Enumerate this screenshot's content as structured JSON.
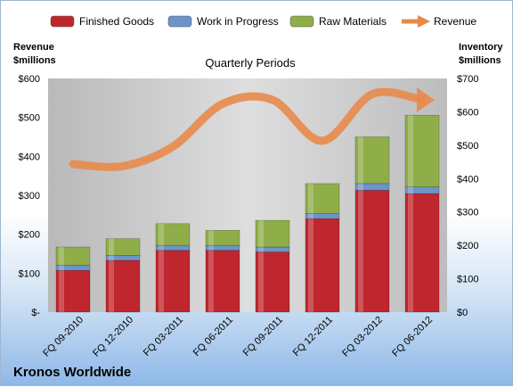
{
  "chart_data": {
    "type": "bar",
    "title": "Quarterly Periods",
    "company": "Kronos Worldwide",
    "left_axis": {
      "title_line1": "Revenue",
      "title_line2": "$millions",
      "ylim": [
        0,
        600
      ],
      "ticks": [
        "$-",
        "$100",
        "$200",
        "$300",
        "$400",
        "$500",
        "$600"
      ]
    },
    "right_axis": {
      "title_line1": "Inventory",
      "title_line2": "$millions",
      "ylim": [
        0,
        700
      ],
      "ticks": [
        "$0",
        "$100",
        "$200",
        "$300",
        "$400",
        "$500",
        "$600",
        "$700"
      ]
    },
    "categories": [
      "FQ 09-2010",
      "FQ 12-2010",
      "FQ 03-2011",
      "FQ 06-2011",
      "FQ 09-2011",
      "FQ 12-2011",
      "FQ 03-2012",
      "FQ 06-2012"
    ],
    "series": [
      {
        "name": "Finished Goods",
        "kind": "stacked-bar",
        "axis": "right",
        "color": "#c0262d",
        "values": [
          125,
          155,
          185,
          185,
          180,
          280,
          365,
          355
        ]
      },
      {
        "name": "Work in Progress",
        "kind": "stacked-bar",
        "axis": "right",
        "color": "#6d94c9",
        "values": [
          15,
          15,
          15,
          15,
          15,
          15,
          20,
          20
        ]
      },
      {
        "name": "Raw Materials",
        "kind": "stacked-bar",
        "axis": "right",
        "color": "#8fae49",
        "values": [
          55,
          50,
          65,
          45,
          80,
          90,
          140,
          215
        ]
      },
      {
        "name": "Revenue",
        "kind": "line",
        "axis": "left",
        "color": "#e8894a",
        "values": [
          380,
          375,
          425,
          535,
          545,
          440,
          560,
          545
        ]
      }
    ],
    "legend_position": "top",
    "grid": false
  }
}
